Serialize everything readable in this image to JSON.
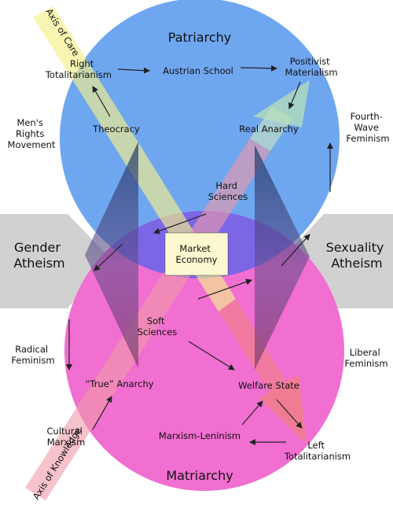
{
  "colors": {
    "patriarchy_circle": "#6fa6f0",
    "matriarchy_circle": "#f06fd0",
    "overlap": "#7c6fe6",
    "axis_care": "#f5f08a",
    "axis_knowledge": "#f07f8a",
    "market_box": "#fbf8cf",
    "gender_band": "#cfcfcf"
  },
  "labels": {
    "patriarchy": "Patriarchy",
    "matriarchy": "Matriarchy",
    "axis_care": "Axis of Care",
    "axis_knowledge": "Axis of Knowledge",
    "right_totalitarianism": [
      "Right",
      "Totalitarianism"
    ],
    "austrian_school": "Austrian School",
    "positivist_materialism": [
      "Positivist",
      "Materialism"
    ],
    "mens_rights": [
      "Men's",
      "Rights",
      "Movement"
    ],
    "theocracy": "Theocracy",
    "real_anarchy": "Real Anarchy",
    "fourth_wave": [
      "Fourth-",
      "Wave",
      "Feminism"
    ],
    "hard_sciences": [
      "Hard",
      "Sciences"
    ],
    "gender_atheism": [
      "Gender",
      "Atheism"
    ],
    "sexuality_atheism": [
      "Sexuality",
      "Atheism"
    ],
    "market_economy": [
      "Market",
      "Economy"
    ],
    "soft_sciences": [
      "Soft",
      "Sciences"
    ],
    "radical_feminism": [
      "Radical",
      "Feminism"
    ],
    "liberal_feminism": [
      "Liberal",
      "Feminism"
    ],
    "true_anarchy": "“True” Anarchy",
    "welfare_state": "Welfare State",
    "cultural_marxism": [
      "Cultural",
      "Marxism"
    ],
    "marxism_leninism": "Marxism-Leninism",
    "left_totalitarianism": [
      "Left",
      "Totalitarianism"
    ]
  }
}
